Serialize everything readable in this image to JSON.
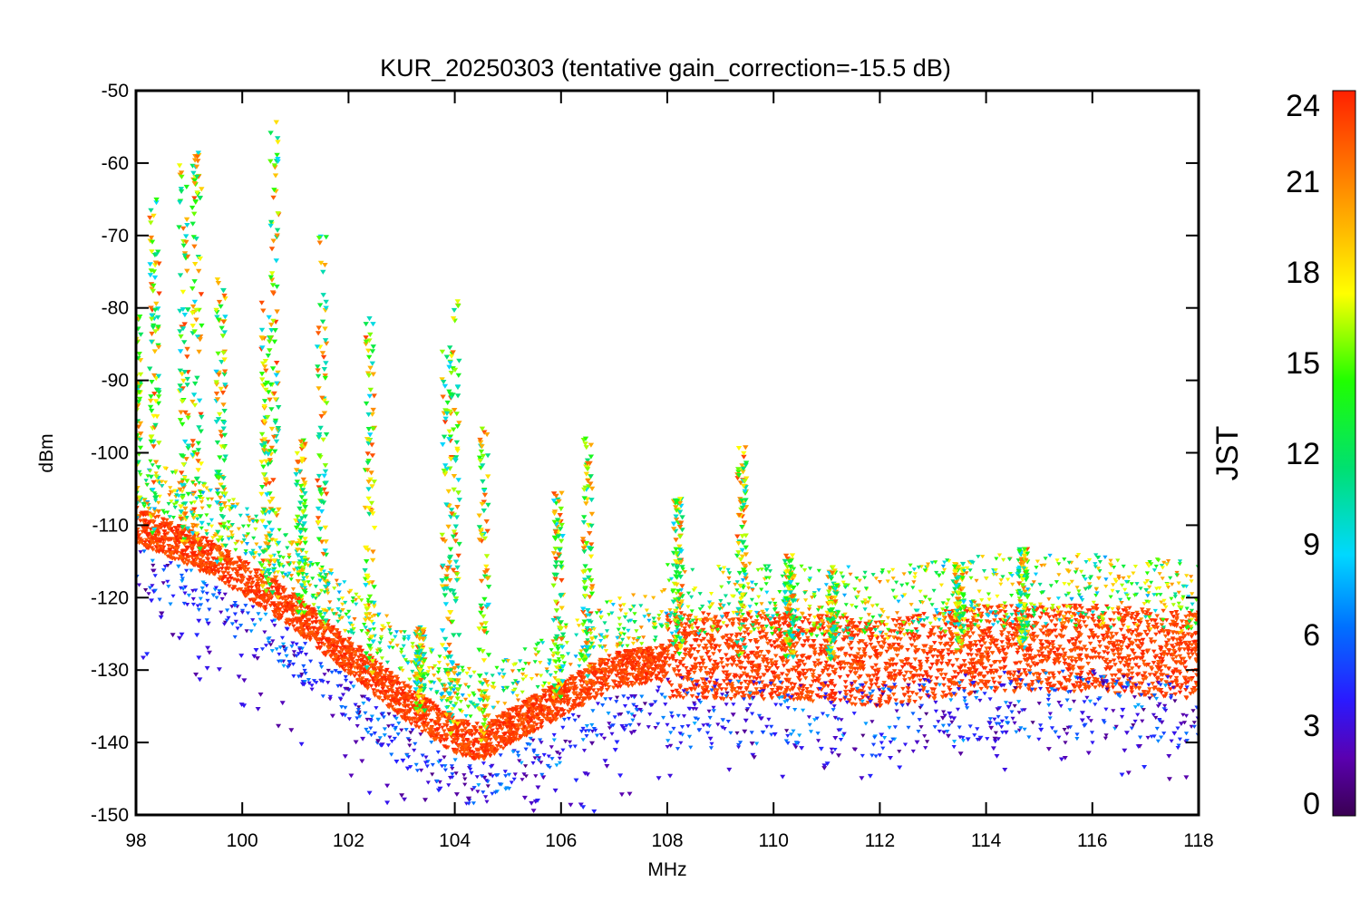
{
  "chart_data": {
    "type": "scatter",
    "title": "KUR_20250303 (tentative gain_correction=-15.5 dB)",
    "xlabel": "MHz",
    "ylabel": "dBm",
    "xlim": [
      98,
      118
    ],
    "ylim": [
      -150,
      -50
    ],
    "x_ticks": [
      "98",
      "100",
      "102",
      "104",
      "106",
      "108",
      "110",
      "112",
      "114",
      "116",
      "118"
    ],
    "y_ticks": [
      "-50",
      "-60",
      "-70",
      "-80",
      "-90",
      "-100",
      "-110",
      "-120",
      "-130",
      "-140",
      "-150"
    ],
    "colorbar": {
      "label": "JST",
      "range": [
        0,
        24
      ],
      "ticks": [
        "0",
        "3",
        "6",
        "9",
        "12",
        "15",
        "18",
        "21",
        "24"
      ],
      "colormap": "rainbow"
    },
    "noise_floor": {
      "description_hidden": false,
      "x": [
        98,
        99,
        100,
        101,
        102,
        103,
        104,
        104.5,
        105,
        106,
        107,
        107.9,
        108,
        110,
        112,
        114,
        116,
        118
      ],
      "y": [
        -110,
        -113,
        -117,
        -122,
        -128,
        -134,
        -139,
        -140,
        -138,
        -134,
        -130,
        -129,
        -128,
        -128,
        -129,
        -127,
        -127,
        -128
      ]
    },
    "stations": [
      {
        "x": 98.0,
        "peak": -79
      },
      {
        "x": 98.35,
        "peak": -65
      },
      {
        "x": 98.9,
        "peak": -60
      },
      {
        "x": 99.15,
        "peak": -58
      },
      {
        "x": 99.6,
        "peak": -76
      },
      {
        "x": 100.6,
        "peak": -53
      },
      {
        "x": 100.45,
        "peak": -79
      },
      {
        "x": 101.1,
        "peak": -98
      },
      {
        "x": 101.5,
        "peak": -69
      },
      {
        "x": 102.4,
        "peak": -81
      },
      {
        "x": 103.35,
        "peak": -124
      },
      {
        "x": 103.85,
        "peak": -85
      },
      {
        "x": 104.0,
        "peak": -79
      },
      {
        "x": 104.55,
        "peak": -96
      },
      {
        "x": 105.95,
        "peak": -105
      },
      {
        "x": 106.5,
        "peak": -98
      },
      {
        "x": 108.2,
        "peak": -106
      },
      {
        "x": 109.4,
        "peak": -99
      },
      {
        "x": 110.3,
        "peak": -114
      },
      {
        "x": 111.1,
        "peak": -115
      },
      {
        "x": 113.5,
        "peak": -115
      },
      {
        "x": 114.7,
        "peak": -113
      }
    ],
    "colors": {
      "dominant": "#ff3300",
      "axis": "#000000"
    }
  }
}
